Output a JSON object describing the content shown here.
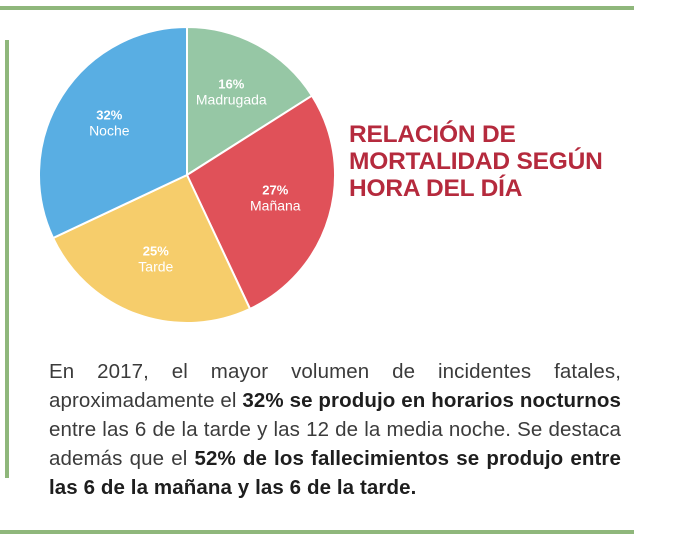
{
  "title_lines": [
    "RELACIÓN DE",
    "MORTALIDAD SEGÚN",
    "HORA DEL DÍA"
  ],
  "chart_data": {
    "type": "pie",
    "title": "RELACIÓN DE MORTALIDAD SEGÚN HORA DEL DÍA",
    "slices": [
      {
        "label": "Madrugada",
        "value": 16,
        "display": "16%",
        "color": "#96c7a5"
      },
      {
        "label": "Mañana",
        "value": 27,
        "display": "27%",
        "color": "#e05159"
      },
      {
        "label": "Tarde",
        "value": 25,
        "display": "25%",
        "color": "#f6cd6b"
      },
      {
        "label": "Noche",
        "value": 32,
        "display": "32%",
        "color": "#59aee3"
      }
    ]
  },
  "paragraph": {
    "t1": "En 2017, el mayor volumen de incidentes fatales, aproximadamente el ",
    "b1": "32% se produjo en horarios nocturnos",
    "t2": " entre las 6 de la tarde y las 12 de la media noche. Se destaca además que el ",
    "b2": "52% de los falleci­mientos se produjo entre las 6 de la mañana y las 6 de la tarde."
  },
  "colors": {
    "accent_green": "#8fb77b",
    "title_red": "#b52a3d",
    "text_gray": "#3b3b3b"
  }
}
